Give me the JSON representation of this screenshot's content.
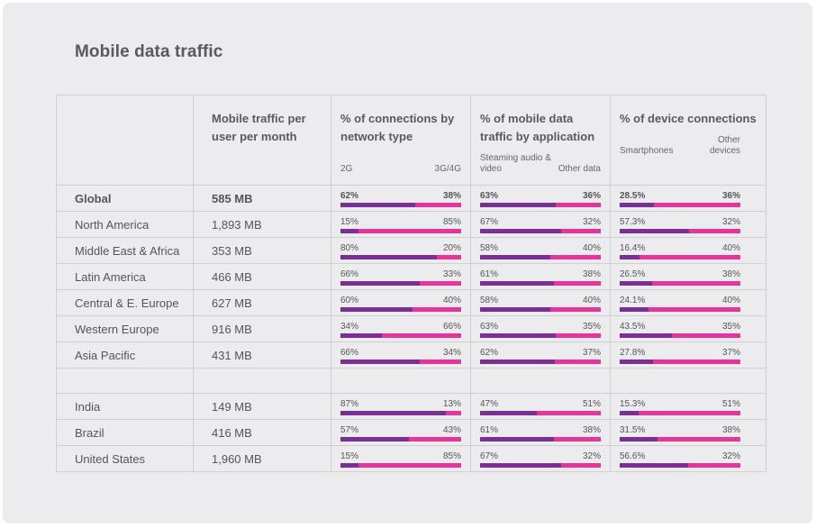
{
  "title": "Mobile data traffic",
  "headers": {
    "traffic": "Mobile traffic per user per month",
    "network": "% of connections by network type",
    "application": "% of mobile data traffic by application",
    "device": "% of device connections"
  },
  "subheaders": {
    "network_a": "2G",
    "network_b": "3G/4G",
    "application_a": "Steaming audio & video",
    "application_b": "Other data",
    "device_a": "Smartphones",
    "device_b": "Other devices"
  },
  "colors": {
    "primary_segment": "#7b2f94",
    "secondary_segment": "#e6359a"
  },
  "rows": [
    {
      "region": "Global",
      "traffic": "585 MB",
      "network": {
        "a": "62%",
        "b": "38%",
        "fill": 0.62
      },
      "application": {
        "a": "63%",
        "b": "36%",
        "fill": 0.63
      },
      "device": {
        "a": "28.5%",
        "b": "36%",
        "fill": 0.285
      }
    },
    {
      "region": "North America",
      "traffic": "1,893 MB",
      "network": {
        "a": "15%",
        "b": "85%",
        "fill": 0.15
      },
      "application": {
        "a": "67%",
        "b": "32%",
        "fill": 0.67
      },
      "device": {
        "a": "57.3%",
        "b": "32%",
        "fill": 0.573
      }
    },
    {
      "region": "Middle East & Africa",
      "traffic": "353 MB",
      "network": {
        "a": "80%",
        "b": "20%",
        "fill": 0.8
      },
      "application": {
        "a": "58%",
        "b": "40%",
        "fill": 0.58
      },
      "device": {
        "a": "16.4%",
        "b": "40%",
        "fill": 0.164
      }
    },
    {
      "region": "Latin America",
      "traffic": "466 MB",
      "network": {
        "a": "66%",
        "b": "33%",
        "fill": 0.66
      },
      "application": {
        "a": "61%",
        "b": "38%",
        "fill": 0.61
      },
      "device": {
        "a": "26.5%",
        "b": "38%",
        "fill": 0.265
      }
    },
    {
      "region": "Central & E. Europe",
      "traffic": "627 MB",
      "network": {
        "a": "60%",
        "b": "40%",
        "fill": 0.6
      },
      "application": {
        "a": "58%",
        "b": "40%",
        "fill": 0.58
      },
      "device": {
        "a": "24.1%",
        "b": "40%",
        "fill": 0.241
      }
    },
    {
      "region": "Western Europe",
      "traffic": "916 MB",
      "network": {
        "a": "34%",
        "b": "66%",
        "fill": 0.34
      },
      "application": {
        "a": "63%",
        "b": "35%",
        "fill": 0.63
      },
      "device": {
        "a": "43.5%",
        "b": "35%",
        "fill": 0.435
      }
    },
    {
      "region": "Asia Pacific",
      "traffic": "431 MB",
      "network": {
        "a": "66%",
        "b": "34%",
        "fill": 0.66
      },
      "application": {
        "a": "62%",
        "b": "37%",
        "fill": 0.62
      },
      "device": {
        "a": "27.8%",
        "b": "37%",
        "fill": 0.278
      }
    },
    {
      "region": "India",
      "traffic": "149 MB",
      "network": {
        "a": "87%",
        "b": "13%",
        "fill": 0.87
      },
      "application": {
        "a": "47%",
        "b": "51%",
        "fill": 0.47
      },
      "device": {
        "a": "15.3%",
        "b": "51%",
        "fill": 0.153
      }
    },
    {
      "region": "Brazil",
      "traffic": "416 MB",
      "network": {
        "a": "57%",
        "b": "43%",
        "fill": 0.57
      },
      "application": {
        "a": "61%",
        "b": "38%",
        "fill": 0.61
      },
      "device": {
        "a": "31.5%",
        "b": "38%",
        "fill": 0.315
      }
    },
    {
      "region": "United States",
      "traffic": "1,960 MB",
      "network": {
        "a": "15%",
        "b": "85%",
        "fill": 0.15
      },
      "application": {
        "a": "67%",
        "b": "32%",
        "fill": 0.67
      },
      "device": {
        "a": "56.6%",
        "b": "32%",
        "fill": 0.566
      }
    }
  ]
}
